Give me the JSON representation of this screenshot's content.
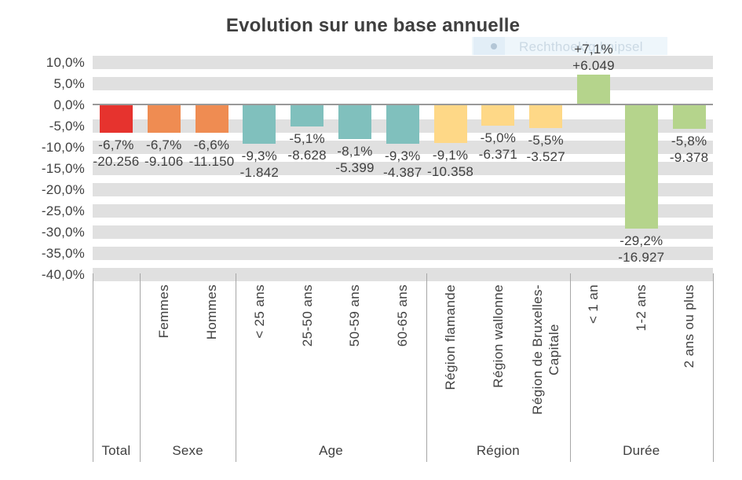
{
  "title": "Evolution sur une base annuelle",
  "ghost_overlay": {
    "label": "Rechthoekig knipsel",
    "bullet_icon": "circle-dot"
  },
  "y_axis": {
    "tick_labels": [
      "10,0%",
      "5,0%",
      "0,0%",
      "-5,0%",
      "-10,0%",
      "-15,0%",
      "-20,0%",
      "-25,0%",
      "-30,0%",
      "-35,0%",
      "-40,0%"
    ],
    "tick_values": [
      10,
      5,
      0,
      -5,
      -10,
      -15,
      -20,
      -25,
      -30,
      -35,
      -40
    ]
  },
  "colors": {
    "total": "#e6332e",
    "sexe": "#ef8c52",
    "age": "#80c0bd",
    "region": "#fed887",
    "duree": "#b5d48c",
    "stripe": "#e0e0e0",
    "zero_line": "#999999",
    "text": "#404040",
    "separator": "#a6a6a6"
  },
  "chart_data": {
    "type": "bar",
    "title": "Evolution sur une base annuelle",
    "categories": [
      "Total",
      "Femmes",
      "Hommes",
      "< 25 ans",
      "25-50 ans",
      "50-59 ans",
      "60-65 ans",
      "Région flamande",
      "Région wallonne",
      "Région de Bruxelles-Capitale",
      "< 1 an",
      "1-2 ans",
      "2 ans ou plus"
    ],
    "x_labels_rotated": [
      "",
      "Femmes",
      "Hommes",
      "< 25 ans",
      "25-50 ans",
      "50-59 ans",
      "60-65 ans",
      "Région flamande",
      "Région wallonne",
      "Région de Bruxelles-\nCapitale",
      "< 1 an",
      "1-2 ans",
      "2 ans ou plus"
    ],
    "values_pct": [
      -6.7,
      -6.7,
      -6.6,
      -9.3,
      -5.1,
      -8.1,
      -9.3,
      -9.1,
      -5.0,
      -5.5,
      7.1,
      -29.2,
      -5.8
    ],
    "values_abs": [
      -20256,
      -9106,
      -11150,
      -1842,
      -8628,
      -5399,
      -4387,
      -10358,
      -6371,
      -3527,
      6049,
      -16927,
      -9378
    ],
    "pct_labels": [
      "-6,7%",
      "-6,7%",
      "-6,6%",
      "-9,3%",
      "-5,1%",
      "-8,1%",
      "-9,3%",
      "-9,1%",
      "-5,0%",
      "-5,5%",
      "+7,1%",
      "-29,2%",
      "-5,8%"
    ],
    "abs_labels": [
      "-20.256",
      "-9.106",
      "-11.150",
      "-1.842",
      "-8.628",
      "-5.399",
      "-4.387",
      "-10.358",
      "-6.371",
      "-3.527",
      "+6.049",
      "-16.927",
      "-9.378"
    ],
    "bar_colors": [
      "#e6332e",
      "#ef8c52",
      "#ef8c52",
      "#80c0bd",
      "#80c0bd",
      "#80c0bd",
      "#80c0bd",
      "#fed887",
      "#fed887",
      "#fed887",
      "#b5d48c",
      "#b5d48c",
      "#b5d48c"
    ],
    "groups": [
      {
        "label": "Total",
        "count": 1
      },
      {
        "label": "Sexe",
        "count": 2
      },
      {
        "label": "Age",
        "count": 4
      },
      {
        "label": "Région",
        "count": 3
      },
      {
        "label": "Durée",
        "count": 3
      }
    ],
    "ylabel": "",
    "xlabel": "",
    "ylim": [
      -40,
      10
    ],
    "grid": "horizontal-bands-every-5pct-except-0",
    "legend": false,
    "label_position": "outside-end"
  }
}
